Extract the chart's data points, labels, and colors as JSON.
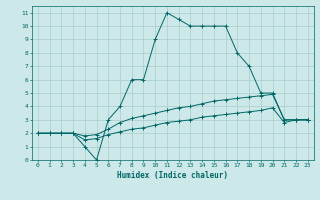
{
  "title": "",
  "xlabel": "Humidex (Indice chaleur)",
  "bg_color": "#cce8e8",
  "grid_color": "#aacccc",
  "line_color": "#006666",
  "xlim": [
    -0.5,
    23.5
  ],
  "ylim": [
    0,
    11.5
  ],
  "x_ticks": [
    0,
    1,
    2,
    3,
    4,
    5,
    6,
    7,
    8,
    9,
    10,
    11,
    12,
    13,
    14,
    15,
    16,
    17,
    18,
    19,
    20,
    21,
    22,
    23
  ],
  "y_ticks": [
    0,
    1,
    2,
    3,
    4,
    5,
    6,
    7,
    8,
    9,
    10,
    11
  ],
  "line1_x": [
    0,
    1,
    2,
    3,
    4,
    5,
    6,
    7,
    8,
    9,
    10,
    11,
    12,
    13,
    14,
    15,
    16,
    17,
    18,
    19,
    20,
    21,
    22,
    23
  ],
  "line1_y": [
    2,
    2,
    2,
    2,
    1,
    0,
    3,
    4,
    6,
    6,
    9,
    11,
    10.5,
    10,
    10,
    10,
    10,
    8,
    7,
    5,
    5,
    3,
    3,
    3
  ],
  "line2_x": [
    0,
    1,
    2,
    3,
    4,
    5,
    6,
    7,
    8,
    9,
    10,
    11,
    12,
    13,
    14,
    15,
    16,
    17,
    18,
    19,
    20,
    21,
    22,
    23
  ],
  "line2_y": [
    2,
    2,
    2,
    2,
    1.8,
    1.9,
    2.3,
    2.8,
    3.1,
    3.3,
    3.5,
    3.7,
    3.9,
    4.0,
    4.2,
    4.4,
    4.5,
    4.6,
    4.7,
    4.8,
    4.9,
    3.0,
    3.0,
    3.0
  ],
  "line3_x": [
    0,
    1,
    2,
    3,
    4,
    5,
    6,
    7,
    8,
    9,
    10,
    11,
    12,
    13,
    14,
    15,
    16,
    17,
    18,
    19,
    20,
    21,
    22,
    23
  ],
  "line3_y": [
    2,
    2,
    2,
    2,
    1.5,
    1.6,
    1.9,
    2.1,
    2.3,
    2.4,
    2.6,
    2.8,
    2.9,
    3.0,
    3.2,
    3.3,
    3.4,
    3.5,
    3.6,
    3.7,
    3.9,
    2.8,
    3.0,
    3.0
  ]
}
